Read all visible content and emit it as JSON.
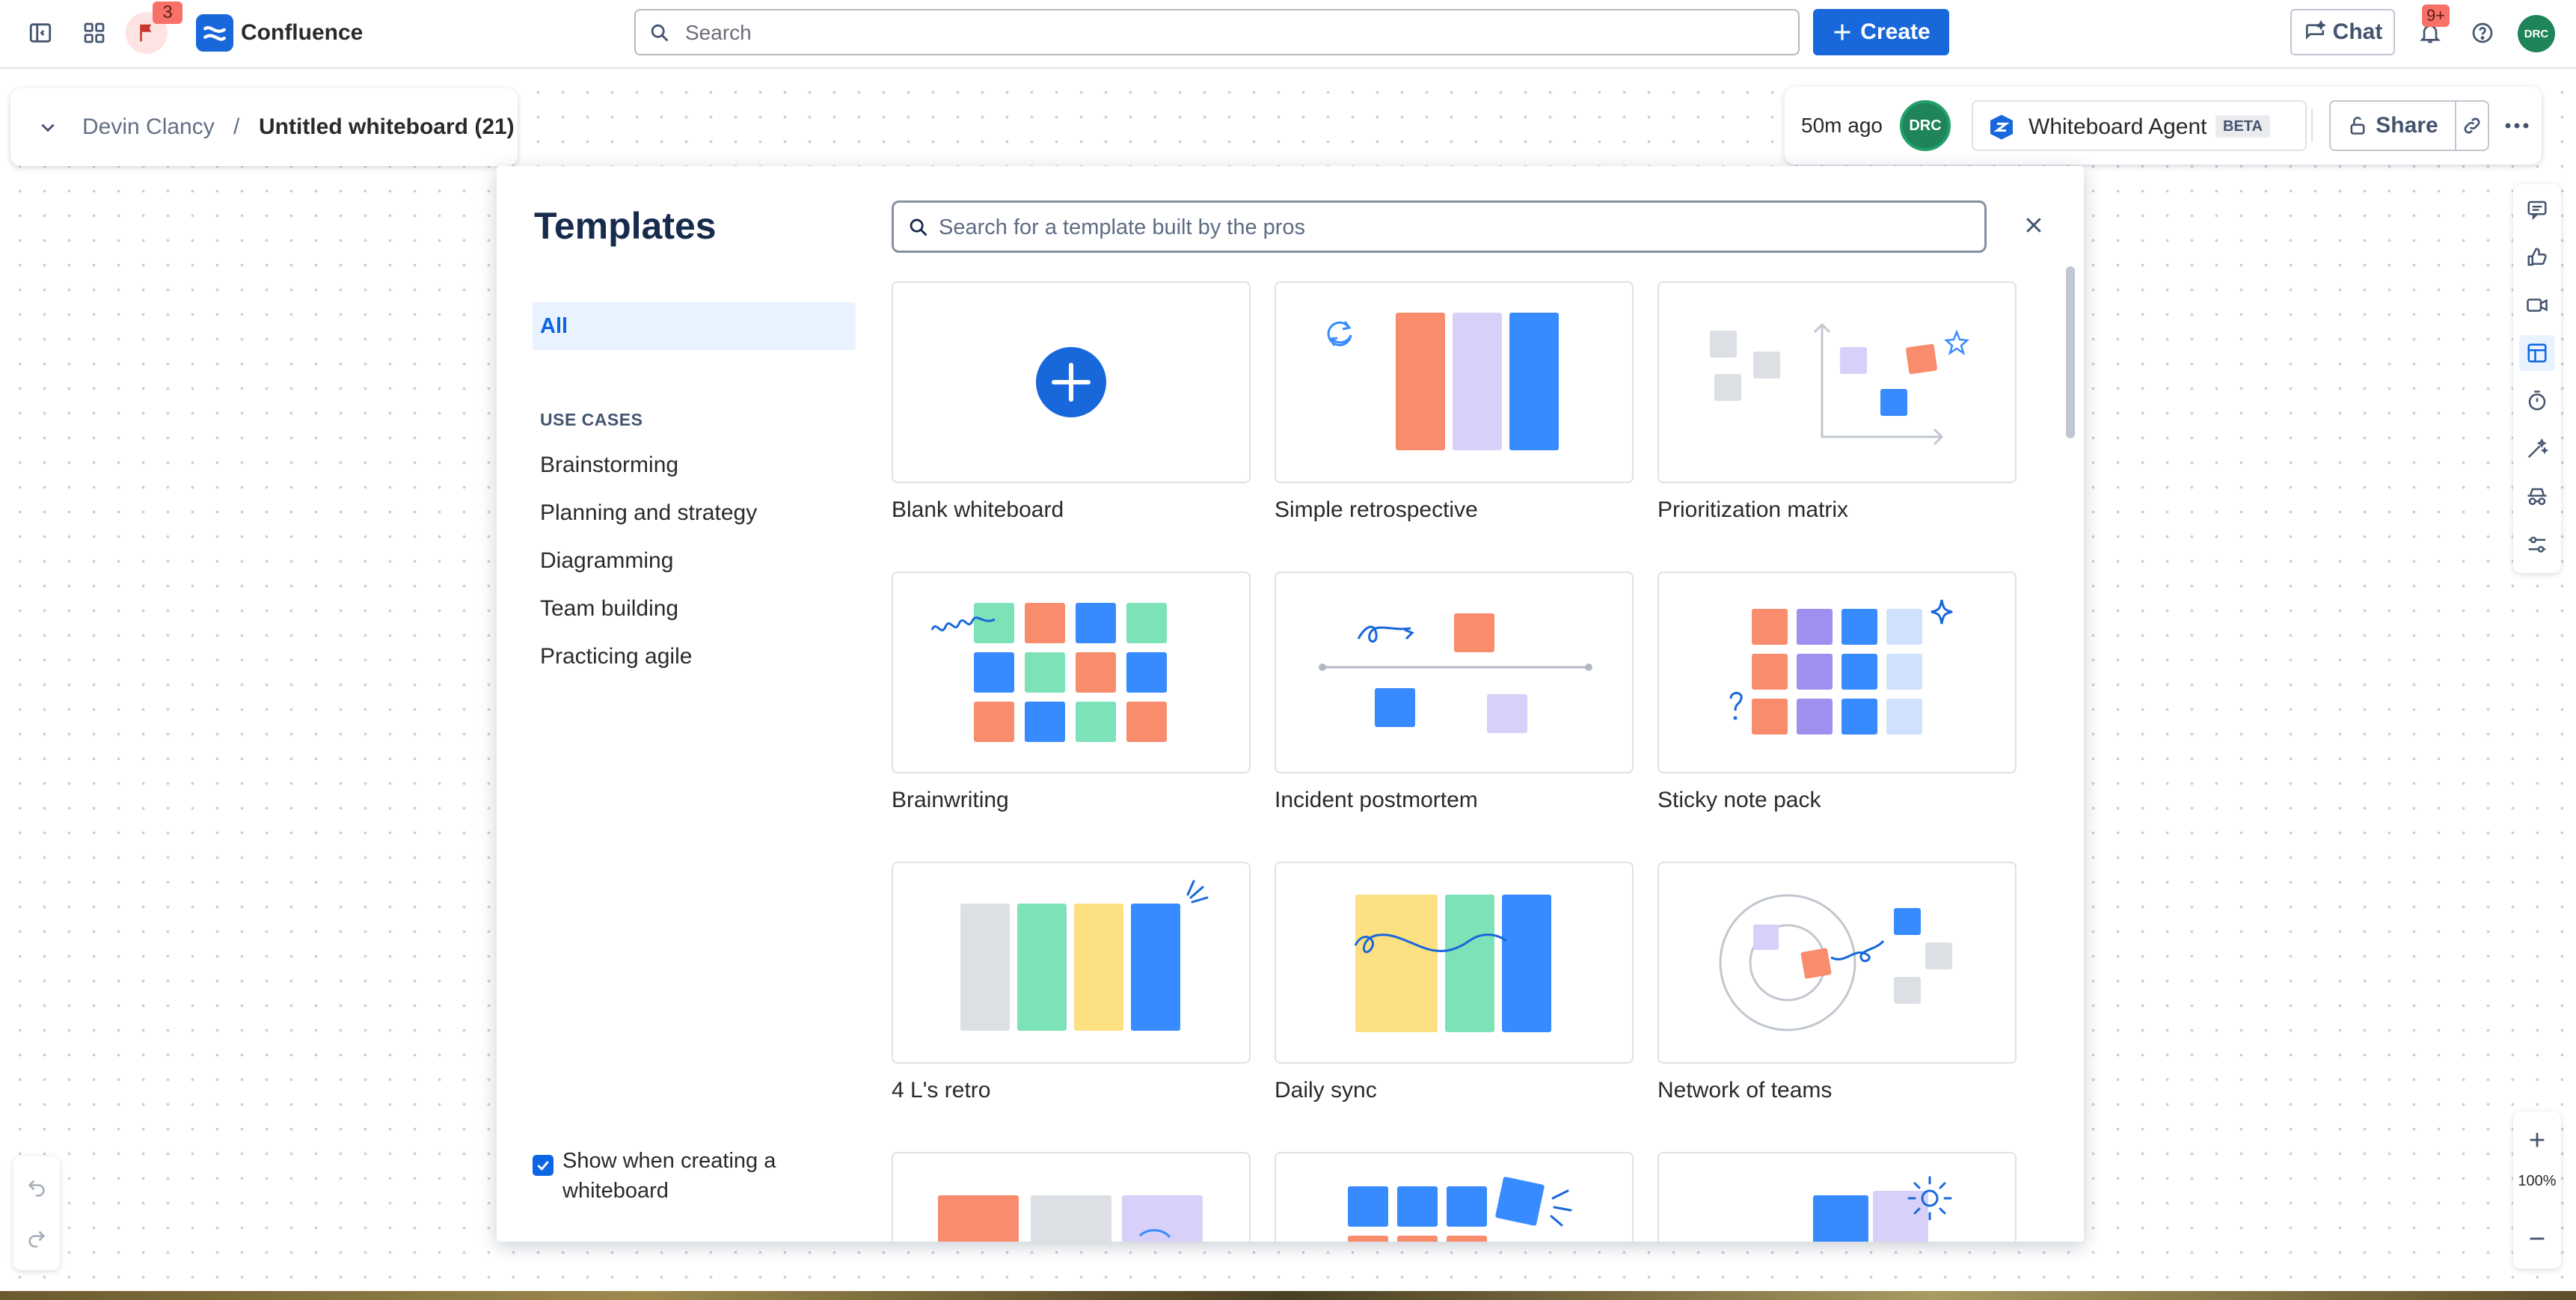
{
  "nav": {
    "flag_count": "3",
    "app_name": "Confluence",
    "search_placeholder": "Search",
    "create_label": "Create",
    "chat_label": "Chat",
    "notifications_badge": "9+",
    "avatar_initials": "DRC"
  },
  "breadcrumb": {
    "space": "Devin Clancy",
    "separator": "/",
    "title": "Untitled whiteboard (21)"
  },
  "toolbar": {
    "last_edited": "50m ago",
    "collaborator_initials": "DRC",
    "agent_label": "Whiteboard Agent",
    "agent_badge": "BETA",
    "share_label": "Share"
  },
  "templates": {
    "title": "Templates",
    "search_placeholder": "Search for a template built by the pros",
    "categories": {
      "all": "All",
      "heading": "USE CASES",
      "items": [
        "Brainstorming",
        "Planning and strategy",
        "Diagramming",
        "Team building",
        "Practicing agile"
      ]
    },
    "cards": [
      {
        "label": "Blank whiteboard"
      },
      {
        "label": "Simple retrospective"
      },
      {
        "label": "Prioritization matrix"
      },
      {
        "label": "Brainwriting"
      },
      {
        "label": "Incident postmortem"
      },
      {
        "label": "Sticky note pack"
      },
      {
        "label": "4 L's retro"
      },
      {
        "label": "Daily sync"
      },
      {
        "label": "Network of teams"
      }
    ],
    "show_when_creating": "Show when creating a whiteboard",
    "show_when_creating_checked": true
  },
  "zoom": {
    "level": "100%"
  },
  "colors": {
    "brand_blue": "#1868db",
    "coral": "#f88c6c",
    "lavender": "#d8d0f8",
    "blue": "#388bff",
    "mint": "#7ee2b8",
    "yellow": "#fde082",
    "purple": "#9f8fef",
    "grey": "#dcdfe4"
  }
}
